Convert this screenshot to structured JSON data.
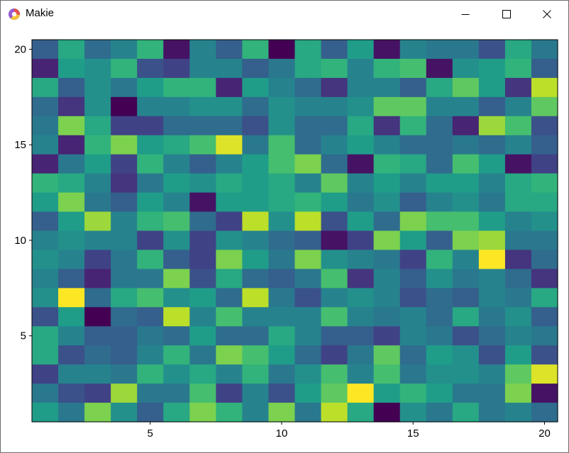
{
  "window": {
    "title": "Makie",
    "app_icon": "makie-logo-icon",
    "controls": [
      {
        "name": "minimize",
        "icon": "minimize-icon"
      },
      {
        "name": "maximize",
        "icon": "maximize-icon"
      },
      {
        "name": "close",
        "icon": "close-icon"
      }
    ]
  },
  "chart_data": {
    "type": "heatmap",
    "colormap": "viridis",
    "colormap_stops": [
      "#440154",
      "#482878",
      "#3e4989",
      "#31688e",
      "#26828e",
      "#1f9e89",
      "#35b779",
      "#6ece58",
      "#b5de2b",
      "#fde725"
    ],
    "x": [
      1,
      2,
      3,
      4,
      5,
      6,
      7,
      8,
      9,
      10,
      11,
      12,
      13,
      14,
      15,
      16,
      17,
      18,
      19,
      20
    ],
    "y": [
      1,
      2,
      3,
      4,
      5,
      6,
      7,
      8,
      9,
      10,
      11,
      12,
      13,
      14,
      15,
      16,
      17,
      18,
      19,
      20
    ],
    "x_ticks": [
      "5",
      "10",
      "15",
      "20"
    ],
    "y_ticks": [
      "5",
      "10",
      "15",
      "20"
    ],
    "xlim": [
      0.5,
      20.5
    ],
    "ylim": [
      0.5,
      20.5
    ],
    "values": [
      [
        0.3,
        0.6,
        0.35,
        0.45,
        0.65,
        0.05,
        0.45,
        0.3,
        0.65,
        0.0,
        0.6,
        0.3,
        0.55,
        0.05,
        0.45,
        0.4,
        0.4,
        0.25,
        0.6,
        0.4
      ],
      [
        0.1,
        0.55,
        0.5,
        0.65,
        0.25,
        0.2,
        0.45,
        0.45,
        0.3,
        0.4,
        0.6,
        0.65,
        0.45,
        0.65,
        0.7,
        0.05,
        0.5,
        0.55,
        0.65,
        0.3
      ],
      [
        0.6,
        0.3,
        0.5,
        0.4,
        0.55,
        0.65,
        0.65,
        0.1,
        0.55,
        0.45,
        0.35,
        0.15,
        0.45,
        0.45,
        0.3,
        0.6,
        0.75,
        0.55,
        0.15,
        0.9
      ],
      [
        0.35,
        0.15,
        0.5,
        0.0,
        0.45,
        0.45,
        0.5,
        0.5,
        0.35,
        0.5,
        0.45,
        0.45,
        0.5,
        0.75,
        0.75,
        0.45,
        0.45,
        0.3,
        0.45,
        0.75
      ],
      [
        0.4,
        0.8,
        0.6,
        0.2,
        0.2,
        0.35,
        0.35,
        0.35,
        0.25,
        0.5,
        0.35,
        0.35,
        0.6,
        0.15,
        0.65,
        0.35,
        0.1,
        0.85,
        0.7,
        0.25
      ],
      [
        0.45,
        0.1,
        0.65,
        0.8,
        0.55,
        0.6,
        0.7,
        0.95,
        0.4,
        0.7,
        0.35,
        0.45,
        0.55,
        0.45,
        0.35,
        0.35,
        0.4,
        0.35,
        0.45,
        0.3
      ],
      [
        0.1,
        0.4,
        0.55,
        0.2,
        0.65,
        0.45,
        0.3,
        0.45,
        0.55,
        0.7,
        0.8,
        0.35,
        0.05,
        0.65,
        0.6,
        0.35,
        0.7,
        0.55,
        0.05,
        0.2
      ],
      [
        0.65,
        0.6,
        0.45,
        0.15,
        0.4,
        0.55,
        0.5,
        0.6,
        0.55,
        0.6,
        0.45,
        0.75,
        0.45,
        0.55,
        0.45,
        0.55,
        0.55,
        0.45,
        0.6,
        0.65
      ],
      [
        0.55,
        0.8,
        0.4,
        0.3,
        0.55,
        0.45,
        0.05,
        0.55,
        0.55,
        0.6,
        0.65,
        0.55,
        0.4,
        0.5,
        0.3,
        0.45,
        0.5,
        0.4,
        0.6,
        0.6
      ],
      [
        0.3,
        0.55,
        0.85,
        0.45,
        0.65,
        0.7,
        0.35,
        0.2,
        0.9,
        0.5,
        0.9,
        0.25,
        0.55,
        0.35,
        0.8,
        0.7,
        0.7,
        0.55,
        0.45,
        0.5
      ],
      [
        0.45,
        0.5,
        0.45,
        0.45,
        0.2,
        0.5,
        0.2,
        0.5,
        0.45,
        0.35,
        0.3,
        0.05,
        0.2,
        0.8,
        0.55,
        0.3,
        0.8,
        0.85,
        0.4,
        0.4
      ],
      [
        0.5,
        0.45,
        0.2,
        0.4,
        0.65,
        0.3,
        0.2,
        0.8,
        0.55,
        0.4,
        0.8,
        0.5,
        0.45,
        0.4,
        0.2,
        0.65,
        0.45,
        1.0,
        0.15,
        0.35
      ],
      [
        0.45,
        0.3,
        0.1,
        0.4,
        0.4,
        0.8,
        0.25,
        0.6,
        0.35,
        0.3,
        0.4,
        0.7,
        0.15,
        0.45,
        0.3,
        0.5,
        0.4,
        0.45,
        0.35,
        0.15
      ],
      [
        0.5,
        1.0,
        0.35,
        0.6,
        0.7,
        0.5,
        0.55,
        0.35,
        0.9,
        0.4,
        0.25,
        0.45,
        0.5,
        0.45,
        0.25,
        0.35,
        0.3,
        0.45,
        0.4,
        0.6
      ],
      [
        0.25,
        0.55,
        0.0,
        0.35,
        0.3,
        0.9,
        0.45,
        0.7,
        0.45,
        0.45,
        0.45,
        0.7,
        0.45,
        0.4,
        0.45,
        0.35,
        0.6,
        0.4,
        0.5,
        0.3
      ],
      [
        0.6,
        0.45,
        0.3,
        0.3,
        0.4,
        0.35,
        0.55,
        0.35,
        0.35,
        0.6,
        0.45,
        0.3,
        0.3,
        0.2,
        0.45,
        0.4,
        0.25,
        0.35,
        0.45,
        0.4
      ],
      [
        0.6,
        0.25,
        0.35,
        0.3,
        0.45,
        0.65,
        0.4,
        0.8,
        0.7,
        0.55,
        0.35,
        0.2,
        0.4,
        0.75,
        0.35,
        0.55,
        0.5,
        0.25,
        0.55,
        0.25
      ],
      [
        0.2,
        0.45,
        0.45,
        0.4,
        0.65,
        0.5,
        0.6,
        0.45,
        0.65,
        0.4,
        0.5,
        0.7,
        0.45,
        0.7,
        0.4,
        0.5,
        0.5,
        0.45,
        0.75,
        0.95
      ],
      [
        0.4,
        0.25,
        0.2,
        0.85,
        0.4,
        0.4,
        0.7,
        0.2,
        0.45,
        0.25,
        0.55,
        0.75,
        1.0,
        0.55,
        0.65,
        0.55,
        0.4,
        0.4,
        0.8,
        0.05
      ],
      [
        0.55,
        0.4,
        0.8,
        0.5,
        0.3,
        0.6,
        0.8,
        0.65,
        0.45,
        0.8,
        0.4,
        0.9,
        0.6,
        0.0,
        0.5,
        0.4,
        0.6,
        0.4,
        0.45,
        0.35
      ]
    ]
  }
}
